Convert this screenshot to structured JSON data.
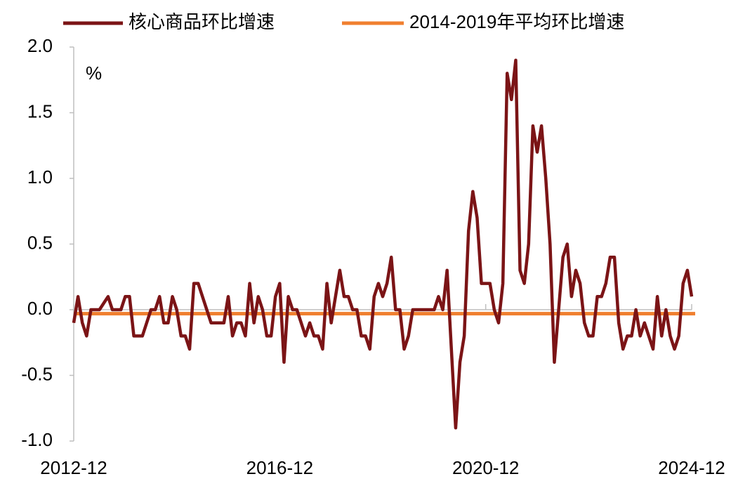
{
  "chart_data": {
    "type": "line",
    "y_label": "%",
    "categories": [
      "2012-12",
      null,
      null,
      null,
      null,
      null,
      null,
      null,
      null,
      null,
      null,
      null,
      null,
      null,
      null,
      null,
      null,
      null,
      null,
      null,
      null,
      null,
      null,
      null,
      null,
      null,
      null,
      null,
      null,
      null,
      null,
      null,
      null,
      null,
      null,
      null,
      null,
      null,
      null,
      null,
      null,
      null,
      null,
      null,
      null,
      null,
      null,
      null,
      "2016-12",
      null,
      null,
      null,
      null,
      null,
      null,
      null,
      null,
      null,
      null,
      null,
      null,
      null,
      null,
      null,
      null,
      null,
      null,
      null,
      null,
      null,
      null,
      null,
      null,
      null,
      null,
      null,
      null,
      null,
      null,
      null,
      null,
      null,
      null,
      null,
      null,
      null,
      null,
      null,
      null,
      null,
      null,
      null,
      null,
      null,
      null,
      null,
      "2020-12",
      null,
      null,
      null,
      null,
      null,
      null,
      null,
      null,
      null,
      null,
      null,
      null,
      null,
      null,
      null,
      null,
      null,
      null,
      null,
      null,
      null,
      null,
      null,
      null,
      null,
      null,
      null,
      null,
      null,
      null,
      null,
      null,
      null,
      null,
      null,
      null,
      null,
      null,
      null,
      null,
      null,
      null,
      null,
      null,
      null,
      null,
      null,
      "2024-12"
    ],
    "series": [
      {
        "name": "核心商品环比增速",
        "color": "#7b1416",
        "values": [
          -0.1,
          0.1,
          -0.1,
          -0.2,
          0,
          0,
          0,
          0.05,
          0.1,
          0,
          0,
          0,
          0.1,
          0.1,
          -0.2,
          -0.2,
          -0.2,
          -0.1,
          0,
          0,
          0.1,
          -0.1,
          -0.1,
          0.1,
          0,
          -0.2,
          -0.2,
          -0.3,
          0.2,
          0.2,
          0.1,
          0,
          -0.1,
          -0.1,
          -0.1,
          -0.1,
          0.1,
          -0.2,
          -0.1,
          -0.1,
          -0.2,
          0.2,
          -0.1,
          0.1,
          0,
          -0.2,
          -0.2,
          0.1,
          0.2,
          -0.4,
          0.1,
          0,
          0,
          -0.1,
          -0.2,
          -0.1,
          -0.2,
          -0.2,
          -0.3,
          0.2,
          -0.1,
          0.1,
          0.3,
          0.1,
          0.1,
          0,
          0,
          -0.2,
          -0.2,
          -0.3,
          0.1,
          0.2,
          0.1,
          0.2,
          0.4,
          0,
          0,
          -0.3,
          -0.2,
          0,
          0,
          0,
          0,
          0,
          0,
          0.1,
          0,
          0.3,
          -0.3,
          -0.9,
          -0.4,
          -0.2,
          0.6,
          0.9,
          0.7,
          0.2,
          0.2,
          0.2,
          0,
          -0.1,
          0.2,
          1.8,
          1.6,
          1.9,
          0.3,
          0.2,
          0.5,
          1.4,
          1.2,
          1.4,
          1.0,
          0.5,
          -0.4,
          0,
          0.4,
          0.5,
          0.1,
          0.3,
          0.2,
          -0.1,
          -0.2,
          -0.2,
          0.1,
          0.1,
          0.2,
          0.4,
          0.4,
          -0.1,
          -0.3,
          -0.2,
          -0.2,
          0,
          -0.2,
          -0.1,
          -0.2,
          -0.3,
          0.1,
          -0.2,
          0,
          -0.2,
          -0.3,
          -0.2,
          0.2,
          0.3,
          0.1
        ]
      }
    ],
    "reference_line": {
      "name": "2014-2019年平均环比增速",
      "color": "#f07f2f",
      "value": -0.03
    },
    "ylim": [
      -1,
      2
    ],
    "yticks": [
      {
        "value": -1,
        "label": "-1.0"
      },
      -0.5,
      {
        "value": 0,
        "label": "0.0"
      },
      0.5,
      {
        "value": 1,
        "label": "1.0"
      },
      1.5,
      {
        "value": 2,
        "label": "2.0"
      }
    ]
  }
}
